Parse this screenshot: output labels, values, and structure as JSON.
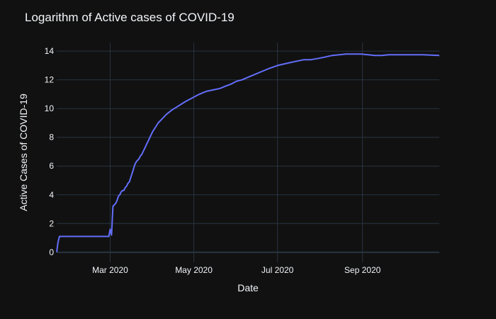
{
  "chart_data": {
    "type": "line",
    "title": "Logarithm of Active cases of COVID-19",
    "xlabel": "Date",
    "ylabel": "Active Cases of COVID-19",
    "xlim": [
      "2020-01-22",
      "2020-10-27"
    ],
    "ylim": [
      -0.7,
      14.6
    ],
    "x_ticks": [
      {
        "date": "2020-03-01",
        "label": "Mar 2020"
      },
      {
        "date": "2020-05-01",
        "label": "May 2020"
      },
      {
        "date": "2020-07-01",
        "label": "Jul 2020"
      },
      {
        "date": "2020-09-01",
        "label": "Sep 2020"
      }
    ],
    "y_ticks": [
      0,
      2,
      4,
      6,
      8,
      10,
      12,
      14
    ],
    "grid": true,
    "legend": "none",
    "series": [
      {
        "color": "#636efa",
        "x": [
          "2020-01-22",
          "2020-01-23",
          "2020-01-24",
          "2020-01-26",
          "2020-02-10",
          "2020-02-29",
          "2020-03-01",
          "2020-03-02",
          "2020-03-03",
          "2020-03-04",
          "2020-03-05",
          "2020-03-06",
          "2020-03-07",
          "2020-03-08",
          "2020-03-09",
          "2020-03-10",
          "2020-03-11",
          "2020-03-12",
          "2020-03-13",
          "2020-03-14",
          "2020-03-15",
          "2020-03-16",
          "2020-03-17",
          "2020-03-18",
          "2020-03-19",
          "2020-03-20",
          "2020-03-21",
          "2020-03-22",
          "2020-03-23",
          "2020-03-24",
          "2020-03-25",
          "2020-03-26",
          "2020-03-27",
          "2020-03-28",
          "2020-03-29",
          "2020-03-30",
          "2020-03-31",
          "2020-04-01",
          "2020-04-03",
          "2020-04-05",
          "2020-04-08",
          "2020-04-11",
          "2020-04-15",
          "2020-04-20",
          "2020-04-25",
          "2020-05-01",
          "2020-05-05",
          "2020-05-10",
          "2020-05-15",
          "2020-05-20",
          "2020-05-25",
          "2020-05-28",
          "2020-05-30",
          "2020-06-01",
          "2020-06-05",
          "2020-06-10",
          "2020-06-15",
          "2020-06-20",
          "2020-06-25",
          "2020-07-01",
          "2020-07-10",
          "2020-07-15",
          "2020-07-20",
          "2020-07-25",
          "2020-07-31",
          "2020-08-05",
          "2020-08-10",
          "2020-08-15",
          "2020-08-20",
          "2020-08-31",
          "2020-09-05",
          "2020-09-10",
          "2020-09-15",
          "2020-09-20",
          "2020-09-25",
          "2020-10-01",
          "2020-10-10",
          "2020-10-15",
          "2020-10-27"
        ],
        "y": [
          0.0,
          0.7,
          1.1,
          1.1,
          1.1,
          1.1,
          1.6,
          1.2,
          3.2,
          3.3,
          3.4,
          3.6,
          3.9,
          4.0,
          4.2,
          4.3,
          4.3,
          4.5,
          4.6,
          4.8,
          4.9,
          5.2,
          5.5,
          5.8,
          6.1,
          6.3,
          6.4,
          6.5,
          6.7,
          6.8,
          7.0,
          7.2,
          7.4,
          7.6,
          7.8,
          8.0,
          8.2,
          8.4,
          8.7,
          9.0,
          9.3,
          9.6,
          9.9,
          10.2,
          10.5,
          10.8,
          11.0,
          11.2,
          11.3,
          11.4,
          11.6,
          11.7,
          11.8,
          11.9,
          12.0,
          12.2,
          12.4,
          12.6,
          12.8,
          13.0,
          13.2,
          13.3,
          13.4,
          13.4,
          13.5,
          13.6,
          13.7,
          13.75,
          13.8,
          13.8,
          13.75,
          13.7,
          13.7,
          13.75,
          13.75,
          13.75,
          13.75,
          13.75,
          13.7
        ]
      }
    ]
  }
}
